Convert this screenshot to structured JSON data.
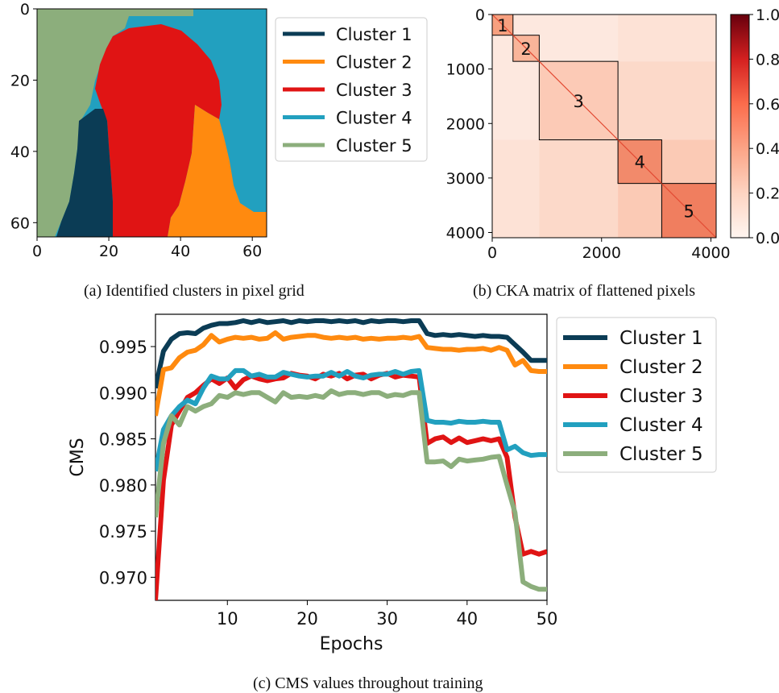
{
  "colors": {
    "cluster1": "#0b3c55",
    "cluster2": "#ff8a0f",
    "cluster3": "#e01414",
    "cluster4": "#22a0bf",
    "cluster5": "#8cae7c"
  },
  "captions": {
    "a": "(a) Identified clusters in pixel grid",
    "b": "(b) CKA matrix of flattened pixels",
    "c": "(c) CMS values throughout training"
  },
  "chart_data": [
    {
      "type": "heatmap",
      "description_axes": "pixel grid",
      "x_ticks": [
        "0",
        "20",
        "40",
        "60"
      ],
      "y_ticks": [
        "0",
        "20",
        "40",
        "60"
      ],
      "xlim": [
        0,
        64
      ],
      "ylim": [
        0,
        64
      ],
      "legend": [
        "Cluster 1",
        "Cluster 2",
        "Cluster 3",
        "Cluster 4",
        "Cluster 5"
      ],
      "legend_position": "right"
    },
    {
      "type": "heatmap",
      "x_ticks": [
        "0",
        "2000",
        "4000"
      ],
      "y_ticks": [
        "0",
        "1000",
        "2000",
        "3000",
        "4000"
      ],
      "xlim": [
        0,
        4096
      ],
      "ylim": [
        0,
        4096
      ],
      "colorbar_ticks": [
        "0.0",
        "0.2",
        "0.4",
        "0.6",
        "0.8",
        "1.0"
      ],
      "colorbar_range": [
        0,
        1
      ],
      "blocks": [
        {
          "label": "1",
          "start": 0,
          "end": 380
        },
        {
          "label": "2",
          "start": 380,
          "end": 860
        },
        {
          "label": "3",
          "start": 860,
          "end": 2300
        },
        {
          "label": "4",
          "start": 2300,
          "end": 3100
        },
        {
          "label": "5",
          "start": 3100,
          "end": 4096
        }
      ]
    },
    {
      "type": "line",
      "xlabel": "Epochs",
      "ylabel": "CMS",
      "xlim": [
        1,
        50
      ],
      "ylim": [
        0.9675,
        0.9985
      ],
      "x_ticks": [
        "10",
        "20",
        "30",
        "40",
        "50"
      ],
      "y_ticks": [
        "0.970",
        "0.975",
        "0.980",
        "0.985",
        "0.990",
        "0.995"
      ],
      "y_tick_values": [
        0.97,
        0.975,
        0.98,
        0.985,
        0.99,
        0.995
      ],
      "x_tick_values": [
        10,
        20,
        30,
        40,
        50
      ],
      "legend_position": "right",
      "x": [
        1,
        2,
        3,
        4,
        5,
        6,
        7,
        8,
        9,
        10,
        11,
        12,
        13,
        14,
        15,
        16,
        17,
        18,
        19,
        20,
        21,
        22,
        23,
        24,
        25,
        26,
        27,
        28,
        29,
        30,
        31,
        32,
        33,
        34,
        35,
        36,
        37,
        38,
        39,
        40,
        41,
        42,
        43,
        44,
        45,
        46,
        47,
        48,
        49,
        50
      ],
      "series": [
        {
          "name": "Cluster 1",
          "values": [
            0.9905,
            0.9945,
            0.9958,
            0.9964,
            0.9965,
            0.9964,
            0.997,
            0.9973,
            0.9975,
            0.9975,
            0.9976,
            0.9978,
            0.9976,
            0.9978,
            0.9976,
            0.9977,
            0.9978,
            0.9976,
            0.9978,
            0.9977,
            0.9978,
            0.9978,
            0.9977,
            0.9978,
            0.9977,
            0.9978,
            0.9976,
            0.9978,
            0.9977,
            0.9978,
            0.9978,
            0.9977,
            0.9978,
            0.9978,
            0.9964,
            0.9962,
            0.9963,
            0.9962,
            0.9963,
            0.9962,
            0.9961,
            0.9962,
            0.9961,
            0.9961,
            0.996,
            0.9952,
            0.9944,
            0.9935,
            0.9935,
            0.9935
          ]
        },
        {
          "name": "Cluster 2",
          "values": [
            0.9875,
            0.9925,
            0.9927,
            0.9938,
            0.9944,
            0.9946,
            0.9952,
            0.9962,
            0.9955,
            0.9958,
            0.996,
            0.9959,
            0.996,
            0.9958,
            0.9959,
            0.9965,
            0.9958,
            0.996,
            0.9961,
            0.9962,
            0.9962,
            0.996,
            0.9959,
            0.996,
            0.9959,
            0.996,
            0.9958,
            0.9959,
            0.9958,
            0.9959,
            0.9959,
            0.996,
            0.9959,
            0.9961,
            0.9949,
            0.9948,
            0.9947,
            0.9947,
            0.9946,
            0.9947,
            0.9947,
            0.9948,
            0.9946,
            0.9949,
            0.9946,
            0.993,
            0.9935,
            0.9924,
            0.9923,
            0.9923
          ]
        },
        {
          "name": "Cluster 3",
          "values": [
            0.9675,
            0.9805,
            0.9865,
            0.988,
            0.9895,
            0.99,
            0.9908,
            0.9915,
            0.991,
            0.9916,
            0.9905,
            0.9914,
            0.9918,
            0.9915,
            0.9913,
            0.9915,
            0.9916,
            0.9921,
            0.9919,
            0.9918,
            0.9915,
            0.992,
            0.9918,
            0.9921,
            0.9915,
            0.9919,
            0.992,
            0.9915,
            0.9919,
            0.9921,
            0.9917,
            0.9919,
            0.9918,
            0.9917,
            0.9845,
            0.985,
            0.9852,
            0.9846,
            0.9851,
            0.9846,
            0.9848,
            0.985,
            0.9848,
            0.985,
            0.983,
            0.9765,
            0.9725,
            0.9728,
            0.9725,
            0.9728
          ]
        },
        {
          "name": "Cluster 4",
          "values": [
            0.9815,
            0.986,
            0.9875,
            0.9885,
            0.9892,
            0.9888,
            0.9905,
            0.9918,
            0.9915,
            0.9915,
            0.9924,
            0.9924,
            0.9918,
            0.992,
            0.9917,
            0.9917,
            0.9922,
            0.992,
            0.9918,
            0.9917,
            0.9918,
            0.9918,
            0.9922,
            0.9918,
            0.9923,
            0.9918,
            0.9916,
            0.9919,
            0.992,
            0.992,
            0.9923,
            0.992,
            0.9923,
            0.9924,
            0.987,
            0.9868,
            0.9868,
            0.9867,
            0.9869,
            0.9868,
            0.9868,
            0.9869,
            0.9868,
            0.9868,
            0.9838,
            0.9842,
            0.9835,
            0.9832,
            0.9833,
            0.9833
          ]
        },
        {
          "name": "Cluster 5",
          "values": [
            0.9765,
            0.9845,
            0.9875,
            0.9865,
            0.9885,
            0.988,
            0.9885,
            0.9888,
            0.9897,
            0.9895,
            0.99,
            0.9898,
            0.99,
            0.99,
            0.9895,
            0.989,
            0.99,
            0.9895,
            0.9896,
            0.9895,
            0.9897,
            0.9895,
            0.9902,
            0.9898,
            0.99,
            0.99,
            0.9898,
            0.99,
            0.99,
            0.9896,
            0.9898,
            0.9897,
            0.99,
            0.99,
            0.9825,
            0.9825,
            0.9826,
            0.982,
            0.9828,
            0.9826,
            0.9827,
            0.9828,
            0.983,
            0.9831,
            0.98,
            0.977,
            0.9695,
            0.969,
            0.9687,
            0.9687
          ]
        }
      ]
    }
  ]
}
